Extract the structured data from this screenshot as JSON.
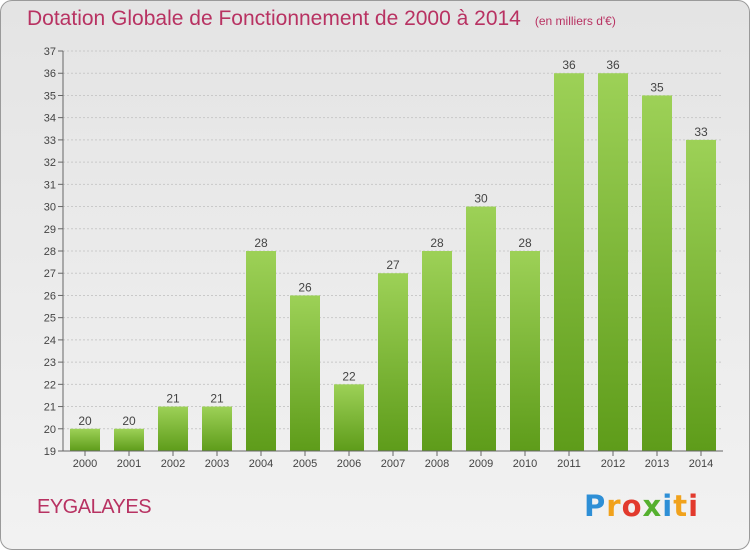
{
  "header": {
    "title": "Dotation Globale de Fonctionnement de 2000 à 2014",
    "subtitle": "(en milliers d'€)"
  },
  "footer": {
    "commune": "EYGALAYES",
    "logo_text": "Proxiti"
  },
  "colors": {
    "title": "#b83262",
    "bar_light": "#9dd157",
    "bar_dark": "#5e9c1a",
    "background": "#ececec"
  },
  "chart_data": {
    "type": "bar",
    "title": "Dotation Globale de Fonctionnement de 2000 à 2014",
    "subtitle": "(en milliers d'€)",
    "xlabel": "",
    "ylabel": "",
    "categories": [
      "2000",
      "2001",
      "2002",
      "2003",
      "2004",
      "2005",
      "2006",
      "2007",
      "2008",
      "2009",
      "2010",
      "2011",
      "2012",
      "2013",
      "2014"
    ],
    "values": [
      20,
      20,
      21,
      21,
      28,
      26,
      22,
      27,
      28,
      30,
      28,
      36,
      36,
      35,
      33
    ],
    "ylim": [
      19,
      37
    ],
    "yticks": [
      19,
      20,
      21,
      22,
      23,
      24,
      25,
      26,
      27,
      28,
      29,
      30,
      31,
      32,
      33,
      34,
      35,
      36,
      37
    ],
    "grid": true,
    "data_labels": true
  }
}
